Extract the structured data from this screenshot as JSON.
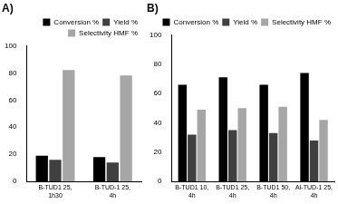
{
  "chart_data": [
    {
      "type": "bar",
      "title": "A)",
      "categories": [
        "B-TUD1 25, 1h30",
        "B-TUD-1 25, 4h"
      ],
      "series": [
        {
          "name": "Conversion %",
          "color": "#000000",
          "values": [
            19,
            18
          ]
        },
        {
          "name": "Yield %",
          "color": "#404040",
          "values": [
            16,
            14
          ]
        },
        {
          "name": "Selectivity HMF %",
          "color": "#a6a6a6",
          "values": [
            82,
            78
          ]
        }
      ],
      "ylim": [
        0,
        100
      ],
      "yticks": [
        0,
        20,
        40,
        60,
        80,
        100
      ],
      "grid": false,
      "legend": "top-right"
    },
    {
      "type": "bar",
      "title": "B)",
      "categories": [
        "B-TUD1 10, 4h",
        "B-TUD1 25, 4h",
        "B-TUD1 50, 4h",
        "Al-TUD-1 25, 4h"
      ],
      "series": [
        {
          "name": "Conversion %",
          "color": "#000000",
          "values": [
            66,
            71,
            66,
            74
          ]
        },
        {
          "name": "Yield %",
          "color": "#404040",
          "values": [
            32,
            35,
            33,
            28
          ]
        },
        {
          "name": "Selectivity HMF %",
          "color": "#a6a6a6",
          "values": [
            49,
            50,
            51,
            42
          ]
        }
      ],
      "ylim": [
        0,
        100
      ],
      "yticks": [
        0,
        20,
        40,
        60,
        80,
        100
      ],
      "grid": false,
      "legend": "top-right"
    }
  ]
}
